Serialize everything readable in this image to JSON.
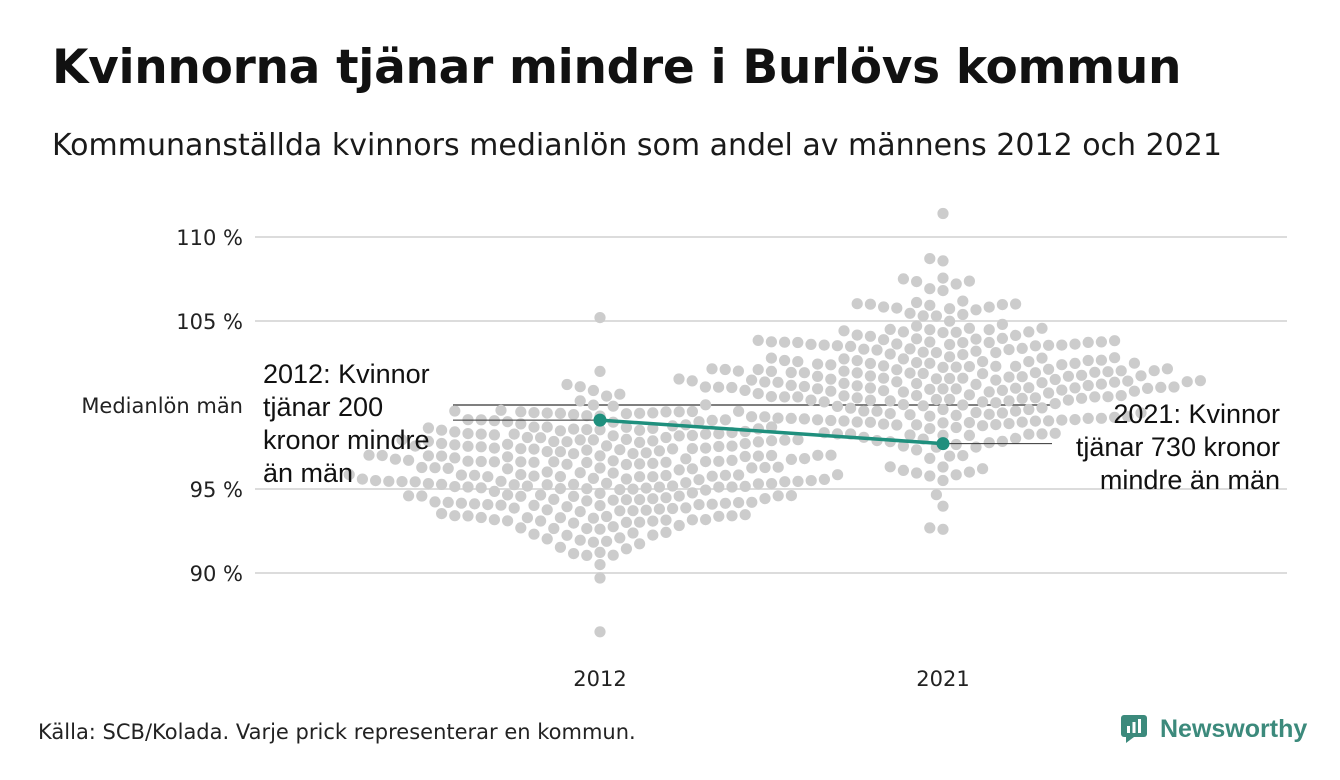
{
  "header": {
    "title": "Kvinnorna tjänar mindre i Burlövs kommun",
    "subtitle": "Kommunanställda kvinnors medianlön som andel av männens 2012 och 2021"
  },
  "chart_data": {
    "type": "scatter",
    "subtype": "beeswarm",
    "y_ticks": [
      "90 %",
      "95 %",
      "105 %",
      "110 %"
    ],
    "y_tick_values": [
      90,
      95,
      105,
      110
    ],
    "ylim": [
      86,
      111.5
    ],
    "grid": true,
    "categories": [
      "2012",
      "2021"
    ],
    "reference_line": {
      "label": "Medianlön män",
      "value": 100
    },
    "highlight": {
      "name": "Burlövs kommun",
      "values": [
        99.1,
        97.7
      ],
      "color": "#1f8f7d"
    },
    "annotations": [
      "2012: Kvinnor\ntjänar 200\nkronor mindre\nän män",
      "2021: Kvinnor\ntjänar 730 kronor\nmindre än män"
    ],
    "swarm_color": "#cccccc",
    "note": "Varje prick representerar en kommun.",
    "distribution": [
      {
        "category": "2012",
        "min": 86.5,
        "max": 105.2,
        "center": 96.0
      },
      {
        "category": "2021",
        "min": 92.6,
        "max": 111.4,
        "center": 101.5
      }
    ]
  },
  "footer": {
    "source": "Källa: SCB/Kolada. Varje prick representerar en kommun.",
    "brand": "Newsworthy",
    "brand_icon": "newsworthy-logo-icon",
    "brand_color": "#3c8a7c"
  }
}
